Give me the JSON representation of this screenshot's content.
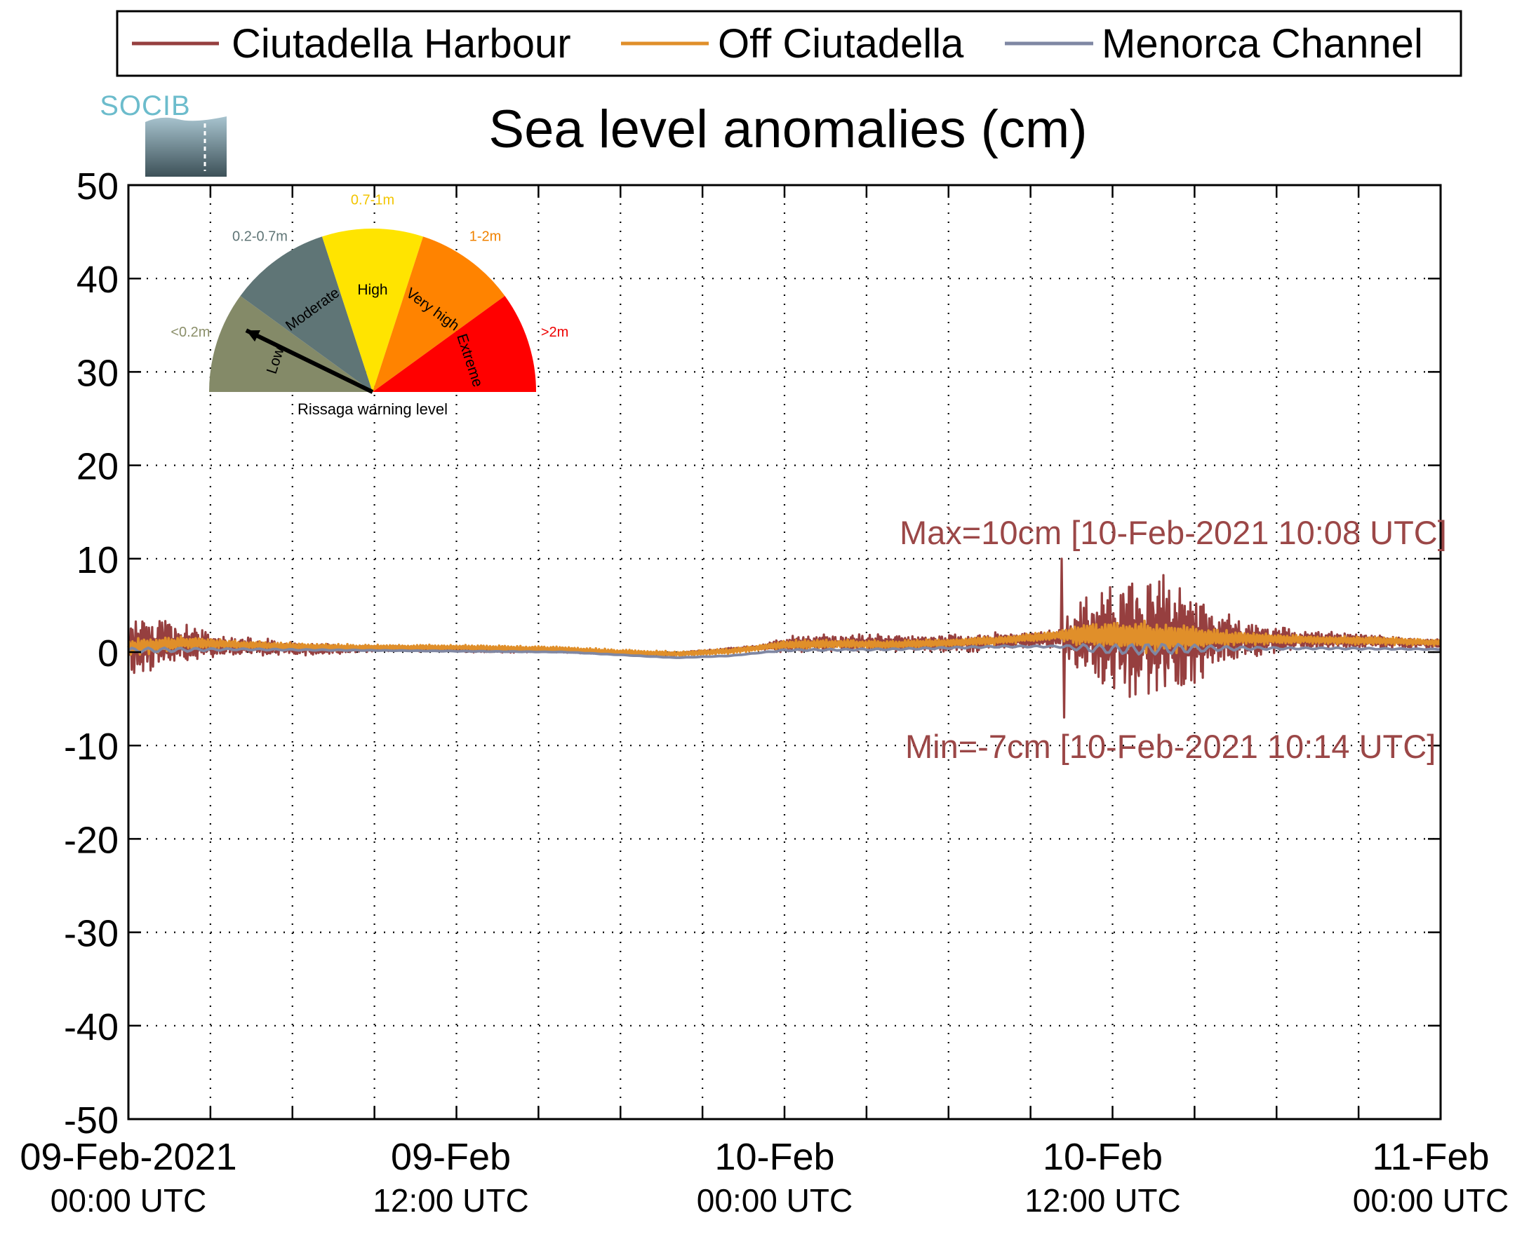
{
  "logo": {
    "text": "SOCIB"
  },
  "colors": {
    "harbour": "#963f3f",
    "off": "#e08f2a",
    "channel": "#7f87a3",
    "annotation": "#9b4747",
    "gauge_low": "#848a68",
    "gauge_moderate": "#5f7576",
    "gauge_high": "#ffe400",
    "gauge_veryhigh": "#ff8300",
    "gauge_extreme": "#ff0000",
    "label_low": "#8b8f6a",
    "label_moderate": "#5f7576",
    "label_high": "#f2c500",
    "label_veryhigh": "#f08200",
    "label_extreme": "#ee0000"
  },
  "gauge": {
    "caption": "Rissaga warning level",
    "indicated_level": "Low",
    "sectors": [
      {
        "name": "Low",
        "range": "<0.2m"
      },
      {
        "name": "Moderate",
        "range": "0.2-0.7m"
      },
      {
        "name": "High",
        "range": "0.7-1m"
      },
      {
        "name": "Very high",
        "range": "1-2m"
      },
      {
        "name": "Extreme",
        "range": ">2m"
      }
    ]
  },
  "chart_data": {
    "type": "line",
    "title": "Sea level anomalies (cm)",
    "xlabel": "",
    "ylabel": "",
    "ylim": [
      -50,
      50
    ],
    "xlim": [
      "2021-02-09 00:00",
      "2021-02-11 00:00"
    ],
    "yticks": [
      "50",
      "40",
      "30",
      "20",
      "10",
      "0",
      "-10",
      "-20",
      "-30",
      "-40",
      "-50"
    ],
    "xticks": [
      {
        "top": "09-Feb-2021",
        "bottom": "00:00 UTC"
      },
      {
        "top": "09-Feb",
        "bottom": "12:00 UTC"
      },
      {
        "top": "10-Feb",
        "bottom": "00:00 UTC"
      },
      {
        "top": "10-Feb",
        "bottom": "12:00 UTC"
      },
      {
        "top": "11-Feb",
        "bottom": "00:00 UTC"
      }
    ],
    "grid": true,
    "legend_position": "top",
    "series": [
      {
        "name": "Ciutadella Harbour",
        "x_hours": [
          0,
          1,
          2,
          3,
          4,
          5,
          6,
          7,
          8,
          9,
          10,
          11,
          12,
          13,
          14,
          15,
          16,
          17,
          18,
          19,
          20,
          21,
          22,
          23,
          24,
          25,
          26,
          27,
          28,
          29,
          30,
          31,
          32,
          33,
          34,
          35,
          36,
          37,
          38,
          39,
          40,
          41,
          42,
          43,
          44,
          45,
          46,
          47,
          48
        ],
        "amplitude_cm": [
          3,
          3,
          2.5,
          1.5,
          1,
          1,
          0.8,
          0.6,
          0.5,
          0.3,
          0.3,
          0.3,
          0.3,
          0.3,
          0.3,
          0.2,
          0.2,
          0.2,
          0.2,
          0.2,
          0.2,
          0.2,
          0.2,
          0.2,
          1,
          1,
          1,
          1,
          1,
          1,
          1,
          1,
          1,
          1,
          1,
          5,
          6,
          7,
          7,
          5,
          3,
          2,
          1.5,
          1,
          1,
          1,
          0.8,
          0.6,
          0.5
        ],
        "mean_cm": [
          0.5,
          0.8,
          0.8,
          0.7,
          0.6,
          0.5,
          0.4,
          0.3,
          0.3,
          0.4,
          0.4,
          0.3,
          0.3,
          0.2,
          0.2,
          0.2,
          0.1,
          0,
          -0.1,
          -0.2,
          -0.2,
          0,
          0.3,
          0.5,
          0.8,
          1,
          1,
          1,
          0.9,
          0.9,
          1,
          1,
          1.2,
          1.3,
          1.5,
          1.5,
          1.5,
          1.5,
          1.5,
          1.5,
          1.5,
          1.3,
          1.3,
          1.3,
          1.3,
          1.2,
          1.1,
          1,
          0.9
        ],
        "max": {
          "value": 10,
          "hour": 34.13
        },
        "min": {
          "value": -7,
          "hour": 34.23
        }
      },
      {
        "name": "Off Ciutadella",
        "x_hours": [
          0,
          2,
          4,
          6,
          8,
          10,
          12,
          14,
          16,
          18,
          20,
          22,
          24,
          26,
          28,
          30,
          32,
          34,
          36,
          38,
          40,
          42,
          44,
          46,
          48
        ],
        "values": [
          0.5,
          1,
          0.8,
          0.6,
          0.5,
          0.5,
          0.5,
          0.4,
          0.3,
          0,
          -0.2,
          0.1,
          0.8,
          0.9,
          0.8,
          1,
          1.3,
          1.8,
          1.8,
          1.5,
          1.5,
          1.4,
          1.3,
          1.2,
          1
        ]
      },
      {
        "name": "Menorca Channel",
        "x_hours": [
          0,
          4,
          8,
          12,
          16,
          20,
          22,
          24,
          28,
          32,
          34,
          36,
          40,
          44,
          48
        ],
        "values": [
          0.2,
          0.3,
          0.2,
          0.1,
          0,
          -0.6,
          -0.4,
          0.2,
          0.3,
          0.6,
          0.6,
          0.3,
          0.4,
          0.4,
          0.3
        ]
      }
    ],
    "annotations": [
      {
        "text": "Max=10cm [10-Feb-2021 10:08 UTC]"
      },
      {
        "text": "Min=-7cm [10-Feb-2021 10:14 UTC]"
      }
    ]
  }
}
